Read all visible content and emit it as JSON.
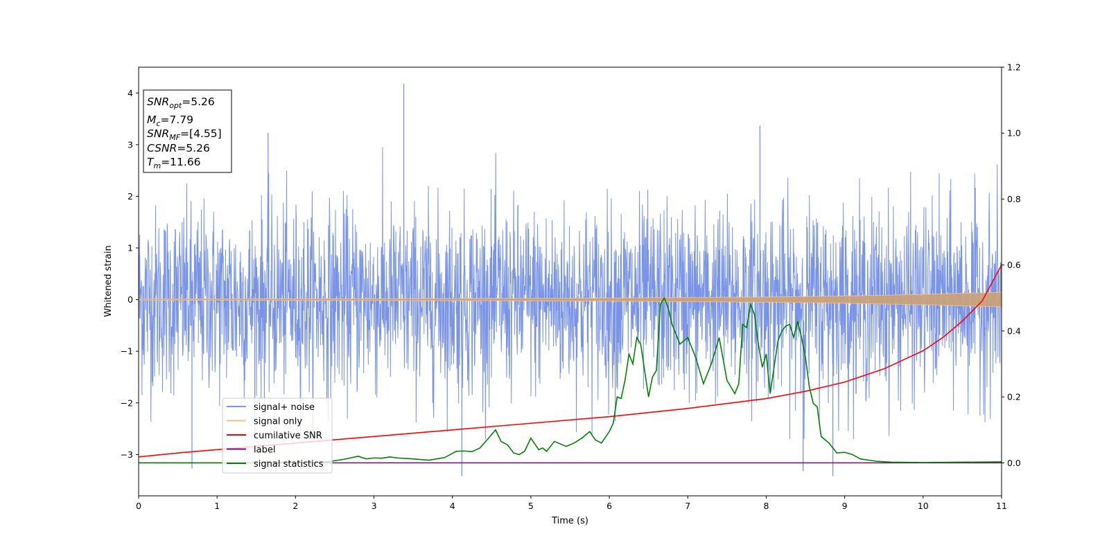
{
  "chart_data": {
    "type": "line",
    "xlabel": "Time (s)",
    "ylabel": "Whitened strain",
    "xlim": [
      0,
      11
    ],
    "ylim": [
      -3.8,
      4.5
    ],
    "y2lim": [
      -0.1,
      1.2
    ],
    "x_ticks": [
      0,
      1,
      2,
      3,
      4,
      5,
      6,
      7,
      8,
      9,
      10,
      11
    ],
    "x_tick_labels": [
      "0",
      "1",
      "2",
      "3",
      "4",
      "5",
      "6",
      "7",
      "8",
      "9",
      "10",
      "11"
    ],
    "y_ticks": [
      -3,
      -2,
      -1,
      0,
      1,
      2,
      3,
      4
    ],
    "y_tick_labels": [
      "−3",
      "−2",
      "−1",
      "0",
      "1",
      "2",
      "3",
      "4"
    ],
    "y2_ticks": [
      0.0,
      0.2,
      0.4,
      0.6,
      0.8,
      1.0,
      1.2
    ],
    "y2_tick_labels": [
      "0.0",
      "0.2",
      "0.4",
      "0.6",
      "0.8",
      "1.0",
      "1.2"
    ],
    "grid": false,
    "legend_position": "lower-left",
    "info_box": {
      "position": "top-left",
      "lines": [
        {
          "base": "SNR",
          "sub": "opt",
          "value": "=5.26"
        },
        {
          "base": "M",
          "sub": "c",
          "value": "=7.79"
        },
        {
          "base": "SNR",
          "sub": "MF",
          "value": "=[4.55]"
        },
        {
          "base": "CSNR",
          "sub": "",
          "value": "=5.26"
        },
        {
          "base": "T",
          "sub": "m",
          "value": "=11.66"
        }
      ]
    },
    "series": [
      {
        "name": "signal+ noise",
        "color": "#7893e8",
        "axis": "left",
        "kind": "noise",
        "note": "dense noisy whitened strain, roughly ±1.5 with spikes to about +4.2 and −3.4",
        "spikes": [
          [
            3.38,
            4.18
          ],
          [
            1.65,
            3.23
          ],
          [
            7.92,
            3.37
          ],
          [
            4.12,
            -3.42
          ],
          [
            8.85,
            -3.42
          ],
          [
            8.47,
            -3.32
          ],
          [
            0.68,
            -3.27
          ]
        ]
      },
      {
        "name": "signal only",
        "color": "#f4bf7f",
        "axis": "left",
        "kind": "chirp",
        "envelope_x": [
          0,
          2,
          4,
          6,
          7,
          8,
          9,
          10,
          10.5,
          11
        ],
        "envelope_y": [
          0.01,
          0.015,
          0.02,
          0.03,
          0.04,
          0.05,
          0.07,
          0.1,
          0.12,
          0.14
        ]
      },
      {
        "name": "cumilative SNR",
        "color": "#ff0000",
        "axis": "right",
        "x": [
          0,
          0.5,
          1,
          2,
          3,
          4,
          5,
          6,
          7,
          7.5,
          8,
          8.5,
          9,
          9.5,
          10,
          10.25,
          10.5,
          10.75,
          11
        ],
        "y": [
          0.018,
          0.03,
          0.04,
          0.06,
          0.08,
          0.1,
          0.12,
          0.14,
          0.165,
          0.18,
          0.195,
          0.217,
          0.245,
          0.285,
          0.34,
          0.38,
          0.43,
          0.49,
          0.6
        ]
      },
      {
        "name": "label",
        "color": "#800080",
        "axis": "right",
        "x": [
          0,
          11
        ],
        "y": [
          0,
          0
        ]
      },
      {
        "name": "signal statistics",
        "color": "#008000",
        "axis": "right",
        "x": [
          0,
          1,
          2,
          2.4,
          2.6,
          2.8,
          2.9,
          3.0,
          3.1,
          3.2,
          3.3,
          3.5,
          3.7,
          3.9,
          4.05,
          4.15,
          4.25,
          4.35,
          4.45,
          4.55,
          4.62,
          4.7,
          4.78,
          4.85,
          4.92,
          5.0,
          5.1,
          5.15,
          5.2,
          5.3,
          5.4,
          5.45,
          5.55,
          5.65,
          5.75,
          5.82,
          5.9,
          6.0,
          6.05,
          6.1,
          6.15,
          6.2,
          6.25,
          6.3,
          6.35,
          6.4,
          6.45,
          6.5,
          6.55,
          6.6,
          6.65,
          6.7,
          6.75,
          6.8,
          6.9,
          7.0,
          7.1,
          7.2,
          7.3,
          7.4,
          7.5,
          7.55,
          7.6,
          7.65,
          7.7,
          7.75,
          7.8,
          7.85,
          7.9,
          7.95,
          8.0,
          8.05,
          8.1,
          8.15,
          8.2,
          8.25,
          8.3,
          8.35,
          8.4,
          8.45,
          8.5,
          8.55,
          8.6,
          8.65,
          8.7,
          8.8,
          8.9,
          9.0,
          9.1,
          9.2,
          9.4,
          9.6,
          10.0,
          11.0
        ],
        "y": [
          0,
          0,
          0.001,
          0.003,
          0.01,
          0.02,
          0.012,
          0.015,
          0.014,
          0.018,
          0.015,
          0.012,
          0.008,
          0.016,
          0.035,
          0.036,
          0.034,
          0.045,
          0.072,
          0.1,
          0.065,
          0.055,
          0.03,
          0.025,
          0.035,
          0.075,
          0.04,
          0.045,
          0.035,
          0.065,
          0.055,
          0.05,
          0.06,
          0.075,
          0.095,
          0.07,
          0.06,
          0.095,
          0.12,
          0.2,
          0.195,
          0.25,
          0.33,
          0.3,
          0.38,
          0.36,
          0.28,
          0.2,
          0.26,
          0.28,
          0.48,
          0.5,
          0.47,
          0.42,
          0.36,
          0.38,
          0.32,
          0.24,
          0.3,
          0.38,
          0.25,
          0.23,
          0.21,
          0.24,
          0.42,
          0.41,
          0.48,
          0.45,
          0.36,
          0.29,
          0.33,
          0.21,
          0.29,
          0.37,
          0.4,
          0.415,
          0.42,
          0.38,
          0.43,
          0.38,
          0.32,
          0.23,
          0.18,
          0.17,
          0.08,
          0.06,
          0.03,
          0.032,
          0.025,
          0.012,
          0.005,
          0.002,
          0.001,
          0.003
        ]
      }
    ]
  }
}
